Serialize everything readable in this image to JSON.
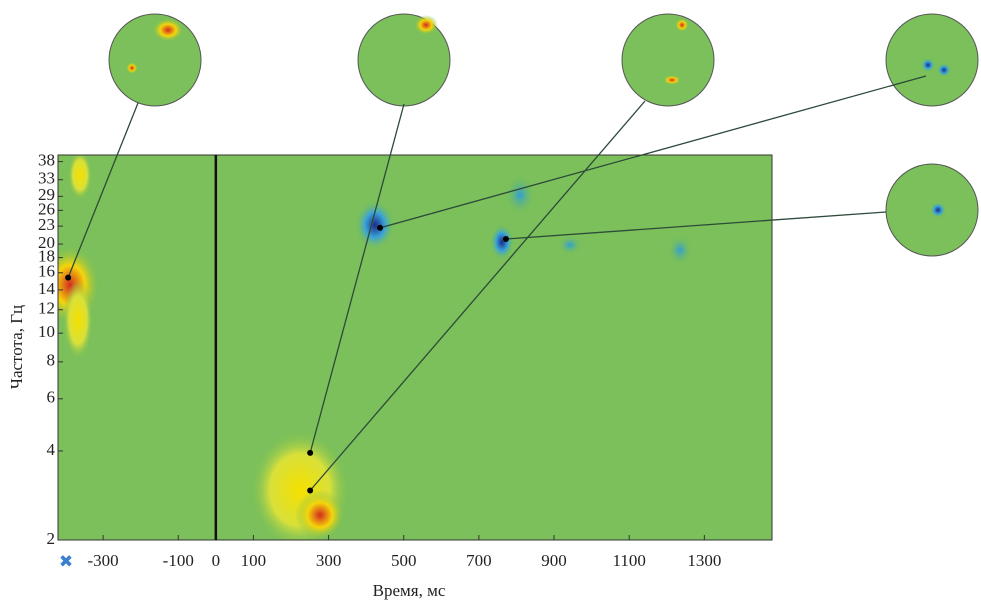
{
  "chart_data": {
    "type": "heatmap",
    "x_label": "Время, мс",
    "y_label": "Частота, Гц",
    "xlim": [
      -420,
      1480
    ],
    "xticks": [
      -300,
      -100,
      0,
      100,
      300,
      500,
      700,
      900,
      1100,
      1300
    ],
    "ylim": [
      2,
      40
    ],
    "log_y": true,
    "yticks": [
      2,
      4,
      6,
      8,
      10,
      12,
      14,
      16,
      18,
      20,
      23,
      26,
      29,
      33,
      38
    ],
    "marker_line_x": 0,
    "points": {
      "x": [
        -393,
        437,
        251,
        251,
        772
      ],
      "y": [
        15.4,
        22.7,
        3.94,
        2.94,
        20.8
      ]
    }
  }
}
